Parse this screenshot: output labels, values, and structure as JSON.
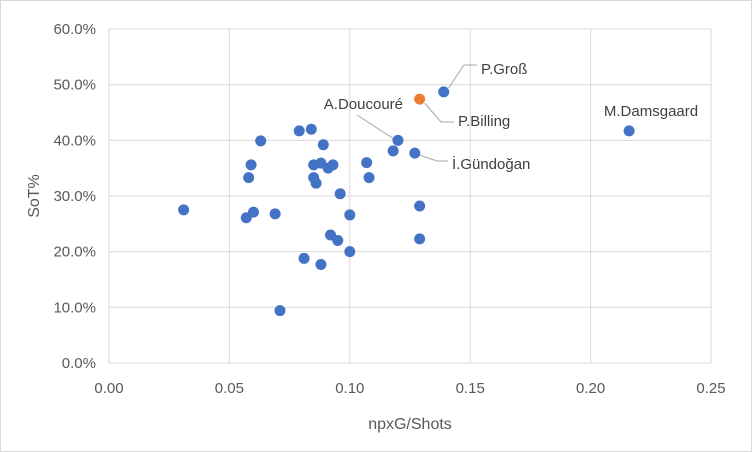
{
  "chart_data": {
    "type": "scatter",
    "title": "",
    "xlabel": "npxG/Shots",
    "ylabel": "SoT%",
    "xlim": [
      0,
      0.25
    ],
    "ylim": [
      0,
      0.6
    ],
    "x_ticks": [
      0,
      0.05,
      0.1,
      0.15,
      0.2,
      0.25
    ],
    "x_tick_labels": [
      "0.00",
      "0.05",
      "0.10",
      "0.15",
      "0.20",
      "0.25"
    ],
    "y_ticks": [
      0,
      0.1,
      0.2,
      0.3,
      0.4,
      0.5,
      0.6
    ],
    "y_tick_labels": [
      "0.0%",
      "10.0%",
      "20.0%",
      "30.0%",
      "40.0%",
      "50.0%",
      "60.0%"
    ],
    "grid": "both",
    "legend": "none",
    "colors": {
      "default": "#4472c4",
      "highlight": "#ed7d31",
      "gridline": "#d9d9d9",
      "text": "#595959"
    },
    "series": [
      {
        "color": "#4472c4",
        "points": [
          [
            0.031,
            0.275
          ],
          [
            0.057,
            0.261
          ],
          [
            0.06,
            0.271
          ],
          [
            0.069,
            0.268
          ],
          [
            0.058,
            0.333
          ],
          [
            0.059,
            0.356
          ],
          [
            0.063,
            0.399
          ],
          [
            0.071,
            0.094
          ],
          [
            0.079,
            0.417
          ],
          [
            0.081,
            0.188
          ],
          [
            0.084,
            0.42
          ],
          [
            0.085,
            0.356
          ],
          [
            0.085,
            0.333
          ],
          [
            0.086,
            0.323
          ],
          [
            0.088,
            0.359
          ],
          [
            0.088,
            0.177
          ],
          [
            0.089,
            0.392
          ],
          [
            0.091,
            0.35
          ],
          [
            0.092,
            0.23
          ],
          [
            0.093,
            0.356
          ],
          [
            0.095,
            0.22
          ],
          [
            0.096,
            0.304
          ],
          [
            0.1,
            0.266
          ],
          [
            0.1,
            0.2
          ],
          [
            0.107,
            0.36
          ],
          [
            0.108,
            0.333
          ],
          [
            0.118,
            0.381
          ],
          [
            0.12,
            0.4
          ],
          [
            0.127,
            0.377
          ],
          [
            0.129,
            0.282
          ],
          [
            0.129,
            0.223
          ],
          [
            0.139,
            0.487
          ],
          [
            0.216,
            0.417
          ]
        ]
      },
      {
        "color": "#ed7d31",
        "points": [
          [
            0.129,
            0.474
          ]
        ]
      }
    ],
    "annotations": [
      {
        "text": "P.Groß",
        "x": 0.139,
        "y": 0.487
      },
      {
        "text": "P.Billing",
        "x": 0.129,
        "y": 0.474
      },
      {
        "text": "A.Doucouré",
        "x": 0.12,
        "y": 0.4
      },
      {
        "text": "İ.Gündoğan",
        "x": 0.127,
        "y": 0.377
      },
      {
        "text": "M.Damsgaard",
        "x": 0.216,
        "y": 0.417
      }
    ]
  }
}
